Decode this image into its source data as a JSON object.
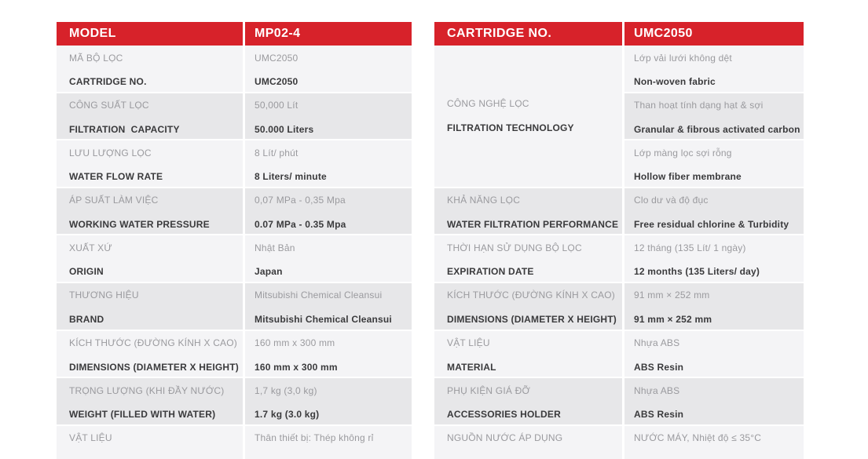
{
  "colors": {
    "accent_red": "#d7222a",
    "row_light": "#f4f4f6",
    "row_gray": "#e7e7e9",
    "text_gray": "#9a9a9e",
    "text_dark": "#3a3a3c"
  },
  "left_table": {
    "header": {
      "col1": "MODEL",
      "col2": "MP02-4"
    },
    "rows": [
      {
        "label_vi": "MÃ BỘ LỌC",
        "label_en": "CARTRIDGE NO.",
        "value_vi": "UMC2050",
        "value_en": "UMC2050"
      },
      {
        "label_vi": "CÔNG SUẤT LỌC",
        "label_en": "FILTRATION  CAPACITY",
        "value_vi": "50,000 Lít",
        "value_en": "50.000 Liters"
      },
      {
        "label_vi": "LƯU LƯỢNG LỌC",
        "label_en": "WATER FLOW RATE",
        "value_vi": "8 Lít/ phút",
        "value_en": "8 Liters/ minute"
      },
      {
        "label_vi": "ÁP SUẤT LÀM VIỆC",
        "label_en": "WORKING WATER PRESSURE",
        "value_vi": "0,07 MPa - 0,35 Mpa",
        "value_en": "0.07 MPa - 0.35 Mpa"
      },
      {
        "label_vi": "XUẤT XỨ",
        "label_en": "ORIGIN",
        "value_vi": "Nhật Bản",
        "value_en": "Japan"
      },
      {
        "label_vi": "THƯƠNG HIỆU",
        "label_en": "BRAND",
        "value_vi": "Mitsubishi Chemical Cleansui",
        "value_en": "Mitsubishi Chemical Cleansui"
      },
      {
        "label_vi": "KÍCH THƯỚC (ĐƯỜNG KÍNH X CAO)",
        "label_en": "DIMENSIONS (DIAMETER X HEIGHT)",
        "value_vi": "160 mm x 300 mm",
        "value_en": "160 mm x 300 mm"
      },
      {
        "label_vi": "TRỌNG LƯỢNG (KHI ĐẦY NƯỚC)",
        "label_en": "WEIGHT (FILLED WITH WATER)",
        "value_vi": "1,7 kg (3,0 kg)",
        "value_en": "1.7 kg (3.0 kg)"
      },
      {
        "label_vi": "VẬT LIỆU",
        "label_en": "",
        "value_vi": "Thân thiết bị: Thép không rỉ",
        "value_en": ""
      }
    ]
  },
  "right_table": {
    "header": {
      "col1": "CARTRIDGE NO.",
      "col2": "UMC2050"
    },
    "tech_section": {
      "label_vi": "CÔNG NGHỆ LỌC",
      "label_en": "FILTRATION TECHNOLOGY",
      "values": [
        {
          "vi": "Lớp vải lưới không dệt",
          "en": "Non-woven fabric"
        },
        {
          "vi": "Than hoạt tính dạng hạt & sợi",
          "en": "Granular & fibrous activated carbon"
        },
        {
          "vi": "Lớp màng lọc sợi rỗng",
          "en": "Hollow fiber membrane"
        }
      ]
    },
    "rows": [
      {
        "label_vi": "KHẢ NĂNG LỌC",
        "label_en": "WATER FILTRATION PERFORMANCE",
        "value_vi": "Clo dư và độ đục",
        "value_en": "Free residual chlorine & Turbidity"
      },
      {
        "label_vi": "THỜI HẠN SỬ DỤNG BỘ LỌC",
        "label_en": "EXPIRATION DATE",
        "value_vi": "12 tháng (135 Lít/ 1 ngày)",
        "value_en": "12 months (135 Liters/ day)"
      },
      {
        "label_vi": "KÍCH THƯỚC (ĐƯỜNG KÍNH X CAO)",
        "label_en": "DIMENSIONS (DIAMETER X HEIGHT)",
        "value_vi": "91 mm × 252 mm",
        "value_en": "91 mm × 252 mm"
      },
      {
        "label_vi": "VẬT LIỆU",
        "label_en": "MATERIAL",
        "value_vi": "Nhựa ABS",
        "value_en": "ABS Resin"
      },
      {
        "label_vi": "PHỤ KIỆN GIÁ ĐỠ",
        "label_en": "ACCESSORIES HOLDER",
        "value_vi": "Nhựa ABS",
        "value_en": "ABS Resin"
      },
      {
        "label_vi": "NGUỒN NƯỚC ÁP DỤNG",
        "label_en": "",
        "value_vi": "NƯỚC MÁY, Nhiệt độ ≤ 35°C",
        "value_en": ""
      }
    ]
  }
}
